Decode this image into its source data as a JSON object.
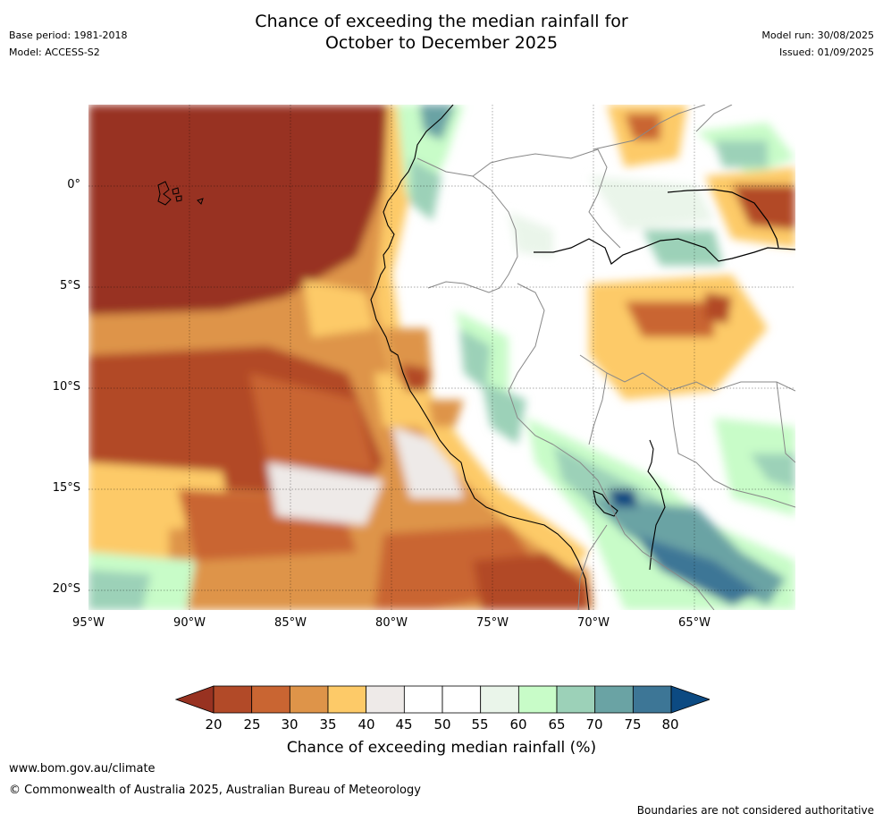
{
  "header": {
    "title_line1": "Chance of exceeding the median rainfall for",
    "title_line2": "October to December 2025",
    "base_period": "Base period: 1981-2018",
    "model": "Model: ACCESS-S2",
    "model_run": "Model run: 30/08/2025",
    "issued": "Issued: 01/09/2025"
  },
  "map": {
    "lat_labels": [
      "0°",
      "5°S",
      "10°S",
      "15°S",
      "20°S"
    ],
    "lon_labels": [
      "95°W",
      "90°W",
      "85°W",
      "80°W",
      "75°W",
      "70°W",
      "65°W"
    ]
  },
  "colorbar": {
    "ticks": [
      "20",
      "25",
      "30",
      "35",
      "40",
      "45",
      "50",
      "55",
      "60",
      "65",
      "70",
      "75",
      "80"
    ],
    "colors": [
      "#983221",
      "#b24a28",
      "#c96532",
      "#de9449",
      "#fdca68",
      "#eeeae8",
      "#ffffff",
      "#ffffff",
      "#eaf5ea",
      "#c8fcc8",
      "#9cd1b8",
      "#6aa3a4",
      "#3d7696",
      "#0c4a82"
    ],
    "label": "Chance of exceeding median rainfall (%)"
  },
  "footer": {
    "website": "www.bom.gov.au/climate",
    "copyright": "© Commonwealth of Australia 2025, Australian Bureau of Meteorology",
    "disclaimer": "Boundaries are not considered authoritative"
  }
}
